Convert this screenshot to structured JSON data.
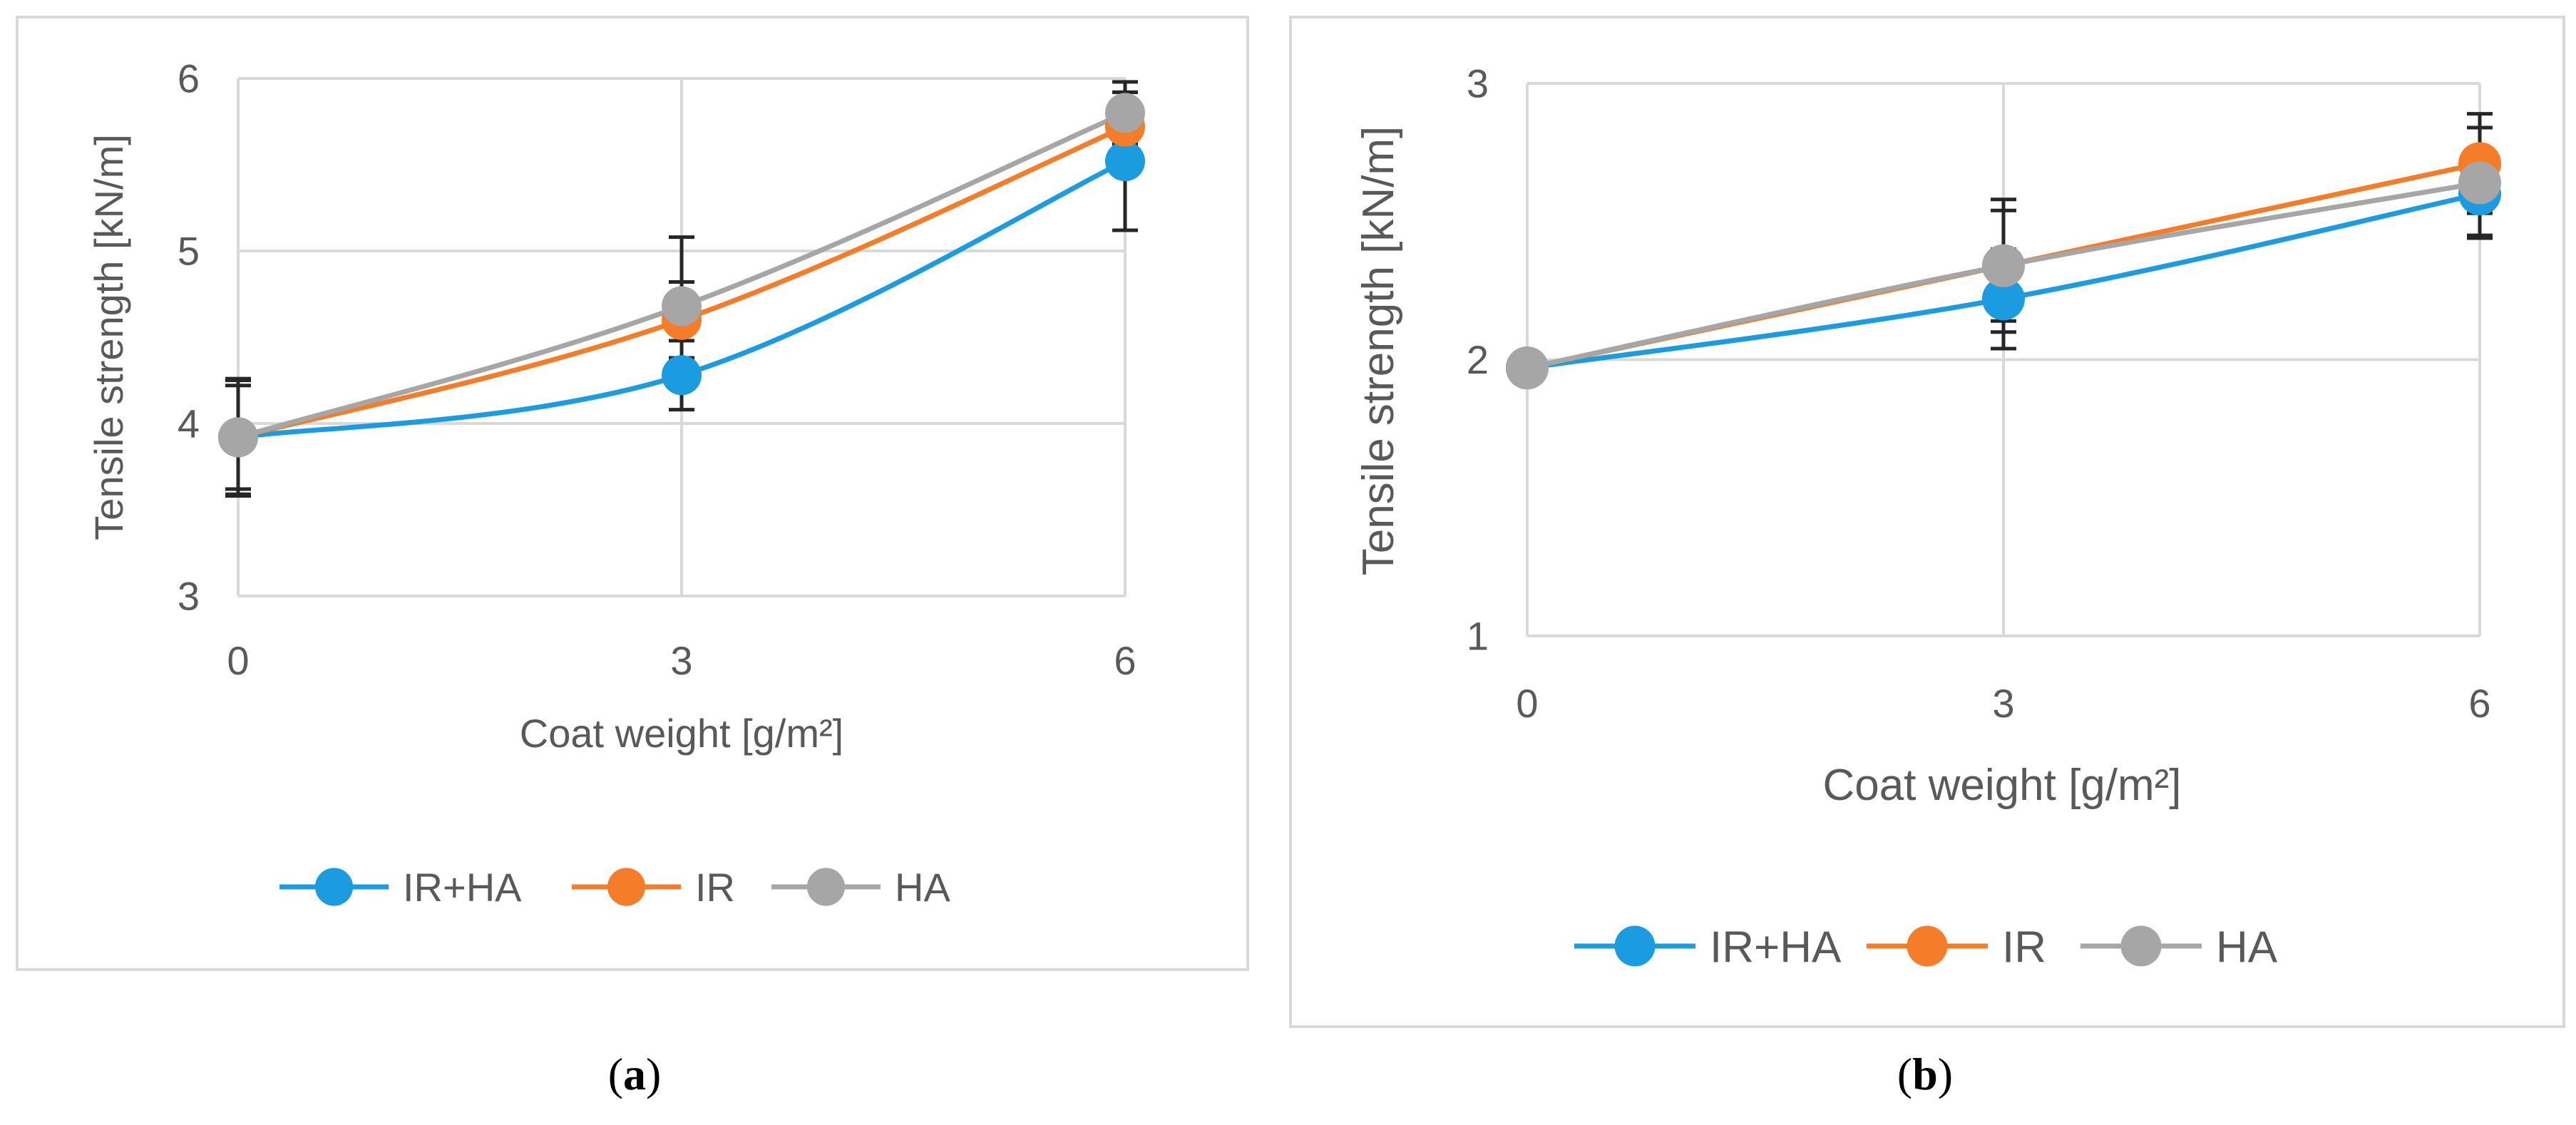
{
  "figure": {
    "captions": [
      {
        "open": "(",
        "letter": "a",
        "close": ")"
      },
      {
        "open": "(",
        "letter": "b",
        "close": ")"
      }
    ]
  },
  "colors": {
    "IR+HA": "#1b9ce0",
    "IR": "#f57d2a",
    "HA": "#a6a6a6",
    "grid": "#d9d9d9",
    "axis_text": "#595959",
    "frame": "#d9d9d9",
    "errorbar": "#262626"
  },
  "chart_data": [
    {
      "type": "line",
      "panel": "a",
      "xlabel": "Coat weight [g/m²]",
      "ylabel": "Tensile strength [kN/m]",
      "x": [
        0,
        3,
        6
      ],
      "x_ticks": [
        "0",
        "3",
        "6"
      ],
      "ylim": [
        3,
        6
      ],
      "y_ticks": [
        "3",
        "4",
        "5",
        "6"
      ],
      "grid": true,
      "legend": "bottom",
      "series": [
        {
          "name": "IR+HA",
          "values": [
            3.92,
            4.28,
            5.52
          ],
          "errors": [
            0.34,
            0.2,
            0.4
          ]
        },
        {
          "name": "IR",
          "values": [
            3.92,
            4.6,
            5.72
          ],
          "errors": [
            0.3,
            0.22,
            0.2
          ]
        },
        {
          "name": "HA",
          "values": [
            3.92,
            4.68,
            5.8
          ],
          "errors": [
            0.33,
            0.4,
            0.18
          ]
        }
      ]
    },
    {
      "type": "line",
      "panel": "b",
      "xlabel": "Coat weight [g/m²]",
      "ylabel": "Tensile strength [kN/m]",
      "x": [
        0,
        3,
        6
      ],
      "x_ticks": [
        "0",
        "3",
        "6"
      ],
      "ylim": [
        1,
        3
      ],
      "y_ticks": [
        "1",
        "2",
        "3"
      ],
      "grid": true,
      "legend": "bottom",
      "series": [
        {
          "name": "IR+HA",
          "values": [
            1.97,
            2.22,
            2.6
          ],
          "errors": [
            0.03,
            0.18,
            0.15
          ]
        },
        {
          "name": "IR",
          "values": [
            1.97,
            2.34,
            2.71
          ],
          "errors": [
            0.03,
            0.2,
            0.18
          ]
        },
        {
          "name": "HA",
          "values": [
            1.97,
            2.34,
            2.64
          ],
          "errors": [
            0.03,
            0.24,
            0.2
          ]
        }
      ]
    }
  ]
}
